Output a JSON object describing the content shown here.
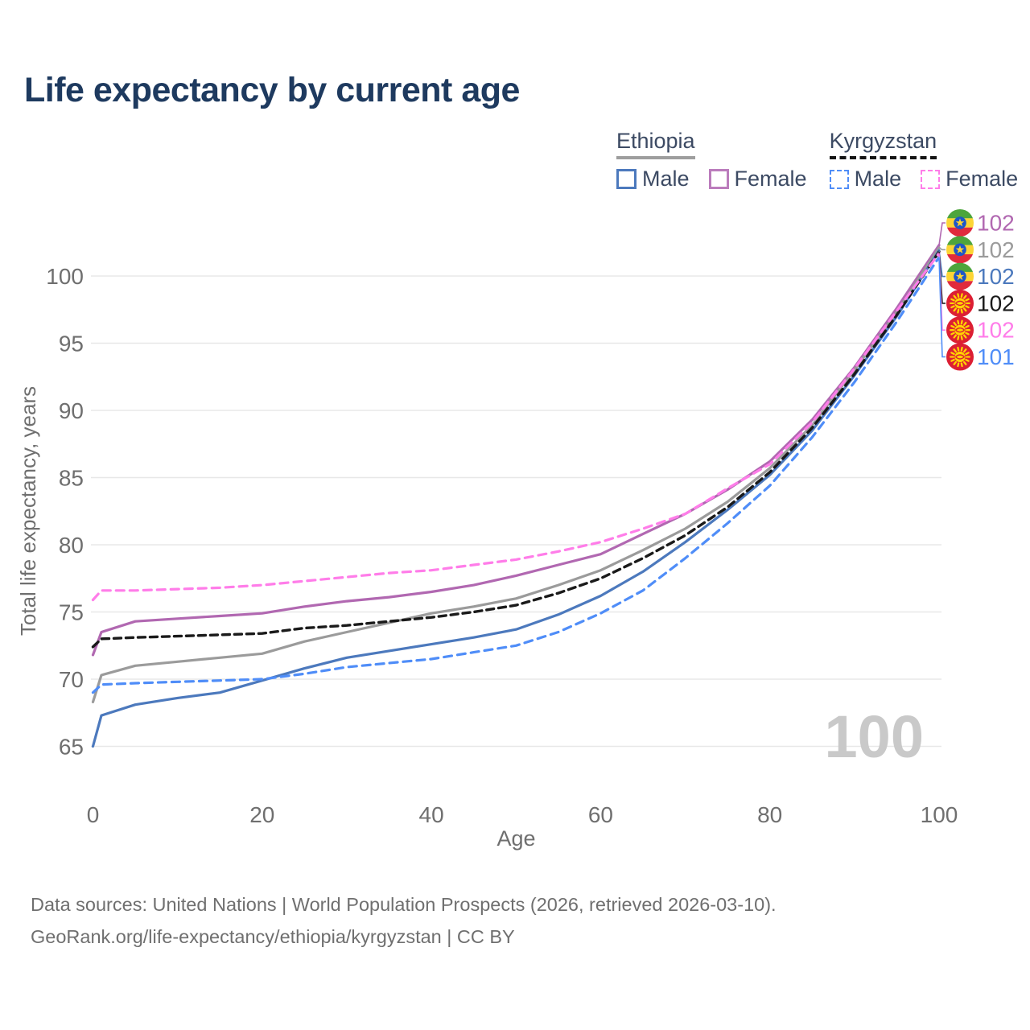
{
  "page": {
    "title": "Life expectancy by current age",
    "watermark_age": "100",
    "footer_line1": "Data sources: United Nations | World Population Prospects (2026, retrieved 2026-03-10).",
    "footer_line2": "GeoRank.org/life-expectancy/ethiopia/kyrgyzstan | CC BY"
  },
  "legend": {
    "groups": [
      {
        "name": "Ethiopia",
        "line_style": "solid",
        "underline_color": "#9e9e9e",
        "items": [
          {
            "label": "Male",
            "color": "#4c79bd"
          },
          {
            "label": "Female",
            "color": "#bb7cbc"
          }
        ]
      },
      {
        "name": "Kyrgyzstan",
        "line_style": "dashed",
        "underline_color": "#141414",
        "items": [
          {
            "label": "Male",
            "color": "#4f8df8"
          },
          {
            "label": "Female",
            "color": "#ff7de9"
          }
        ]
      }
    ]
  },
  "chart_data": {
    "type": "line",
    "title": "Life expectancy by current age",
    "xlabel": "Age",
    "ylabel": "Total life expectancy, years",
    "xlim": [
      0,
      100
    ],
    "ylim": [
      63.5,
      103.5
    ],
    "x_ticks": [
      0,
      20,
      40,
      60,
      80,
      100
    ],
    "y_ticks": [
      65,
      70,
      75,
      80,
      85,
      90,
      95,
      100
    ],
    "grid": "horizontal",
    "legend_position": "top-right",
    "watermark": "100",
    "ages": [
      0,
      1,
      5,
      10,
      15,
      20,
      25,
      30,
      35,
      40,
      45,
      50,
      55,
      60,
      65,
      70,
      75,
      80,
      85,
      90,
      95,
      100
    ],
    "series": [
      {
        "name": "Ethiopia — Female",
        "country": "Ethiopia",
        "sex": "Female",
        "color": "#b168b1",
        "line_style": "solid",
        "flag": "ethiopia",
        "end_label": "102",
        "values": [
          71.8,
          73.5,
          74.3,
          74.5,
          74.7,
          74.9,
          75.4,
          75.8,
          76.1,
          76.5,
          77.0,
          77.7,
          78.5,
          79.3,
          80.8,
          82.3,
          84.1,
          86.2,
          89.3,
          93.2,
          97.6,
          102.3
        ]
      },
      {
        "name": "Ethiopia — Both sexes",
        "country": "Ethiopia",
        "sex": "Both",
        "color": "#9b9b9b",
        "line_style": "solid",
        "flag": "ethiopia",
        "end_label": "102",
        "values": [
          68.3,
          70.3,
          71.0,
          71.3,
          71.6,
          71.9,
          72.8,
          73.5,
          74.2,
          74.9,
          75.4,
          76.0,
          77.0,
          78.1,
          79.6,
          81.2,
          83.2,
          85.7,
          88.9,
          93.0,
          97.3,
          102.1
        ]
      },
      {
        "name": "Ethiopia — Male",
        "country": "Ethiopia",
        "sex": "Male",
        "color": "#4c79bd",
        "line_style": "solid",
        "flag": "ethiopia",
        "end_label": "102",
        "values": [
          65.0,
          67.3,
          68.1,
          68.6,
          69.0,
          69.9,
          70.8,
          71.6,
          72.1,
          72.6,
          73.1,
          73.7,
          74.8,
          76.2,
          78.0,
          80.2,
          82.6,
          85.2,
          88.5,
          92.6,
          97.0,
          101.9
        ]
      },
      {
        "name": "Kyrgyzstan — Both sexes",
        "country": "Kyrgyzstan",
        "sex": "Both",
        "color": "#1a1a1a",
        "line_style": "dashed",
        "flag": "kyrgyzstan",
        "end_label": "102",
        "values": [
          72.4,
          73.0,
          73.1,
          73.2,
          73.3,
          73.4,
          73.8,
          74.0,
          74.3,
          74.6,
          75.0,
          75.5,
          76.4,
          77.5,
          79.0,
          80.7,
          82.8,
          85.4,
          88.7,
          92.7,
          97.1,
          101.8
        ]
      },
      {
        "name": "Kyrgyzstan — Female",
        "country": "Kyrgyzstan",
        "sex": "Female",
        "color": "#ff7de9",
        "line_style": "dashed",
        "flag": "kyrgyzstan",
        "end_label": "102",
        "values": [
          75.9,
          76.6,
          76.6,
          76.7,
          76.8,
          77.0,
          77.3,
          77.6,
          77.9,
          78.1,
          78.5,
          78.9,
          79.5,
          80.2,
          81.2,
          82.3,
          84.2,
          86.0,
          89.1,
          93.1,
          97.4,
          101.7
        ]
      },
      {
        "name": "Kyrgyzstan — Male",
        "country": "Kyrgyzstan",
        "sex": "Male",
        "color": "#4f8df8",
        "line_style": "dashed",
        "flag": "kyrgyzstan",
        "end_label": "101",
        "values": [
          69.0,
          69.6,
          69.7,
          69.8,
          69.9,
          70.0,
          70.4,
          70.9,
          71.2,
          71.5,
          72.0,
          72.5,
          73.5,
          74.9,
          76.6,
          79.0,
          81.6,
          84.4,
          88.0,
          92.1,
          96.6,
          101.4
        ]
      }
    ],
    "flag_colors": {
      "ethiopia_green": "#4da53c",
      "ethiopia_yellow": "#fcd535",
      "ethiopia_red": "#e02b3d",
      "ethiopia_blue": "#1d56c8",
      "kyrgyzstan_red": "#dc1f33",
      "kyrgyzstan_yellow": "#ffd400"
    }
  }
}
